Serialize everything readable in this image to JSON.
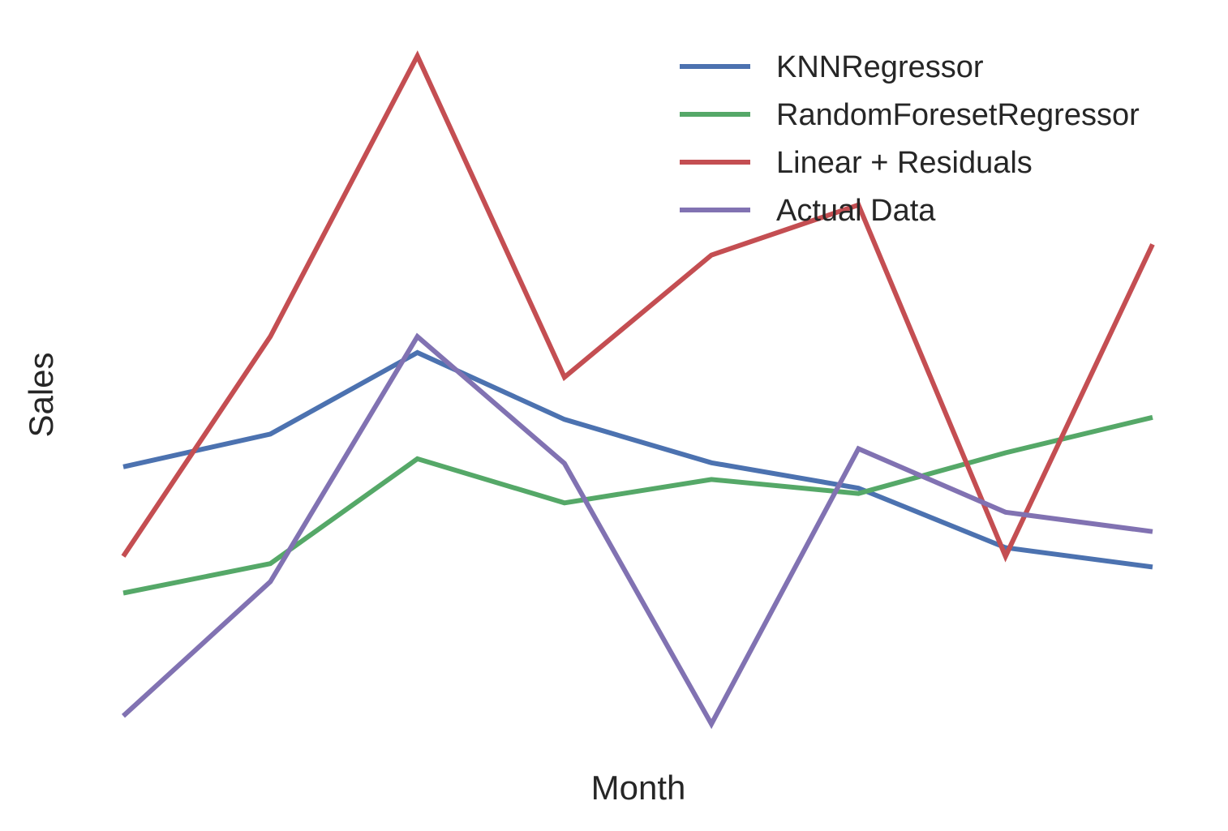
{
  "chart_data": {
    "type": "line",
    "title": "",
    "xlabel": "Month",
    "ylabel": "Sales",
    "x": [
      1,
      2,
      3,
      4,
      5,
      6,
      7,
      8
    ],
    "xlim": [
      1,
      8
    ],
    "ylim": [
      0,
      100
    ],
    "grid": false,
    "ticks_shown": false,
    "legend_position": "top-right",
    "series": [
      {
        "name": "KNNRegressor",
        "color": "#4C72B0",
        "values": [
          38.5,
          43.4,
          55.6,
          45.6,
          39.1,
          35.3,
          26.4,
          23.5
        ]
      },
      {
        "name": "RandomForesetRegressor",
        "color": "#55A868",
        "values": [
          19.6,
          24.0,
          39.7,
          33.1,
          36.6,
          34.5,
          40.6,
          45.9
        ]
      },
      {
        "name": "Linear + Residuals",
        "color": "#C44E52",
        "values": [
          25.1,
          58.0,
          100.0,
          51.9,
          70.2,
          77.7,
          25.1,
          71.8
        ]
      },
      {
        "name": "Actual Data",
        "color": "#8172B2",
        "values": [
          1.2,
          21.3,
          58.0,
          39.0,
          0.0,
          41.2,
          31.7,
          28.8
        ]
      }
    ]
  }
}
